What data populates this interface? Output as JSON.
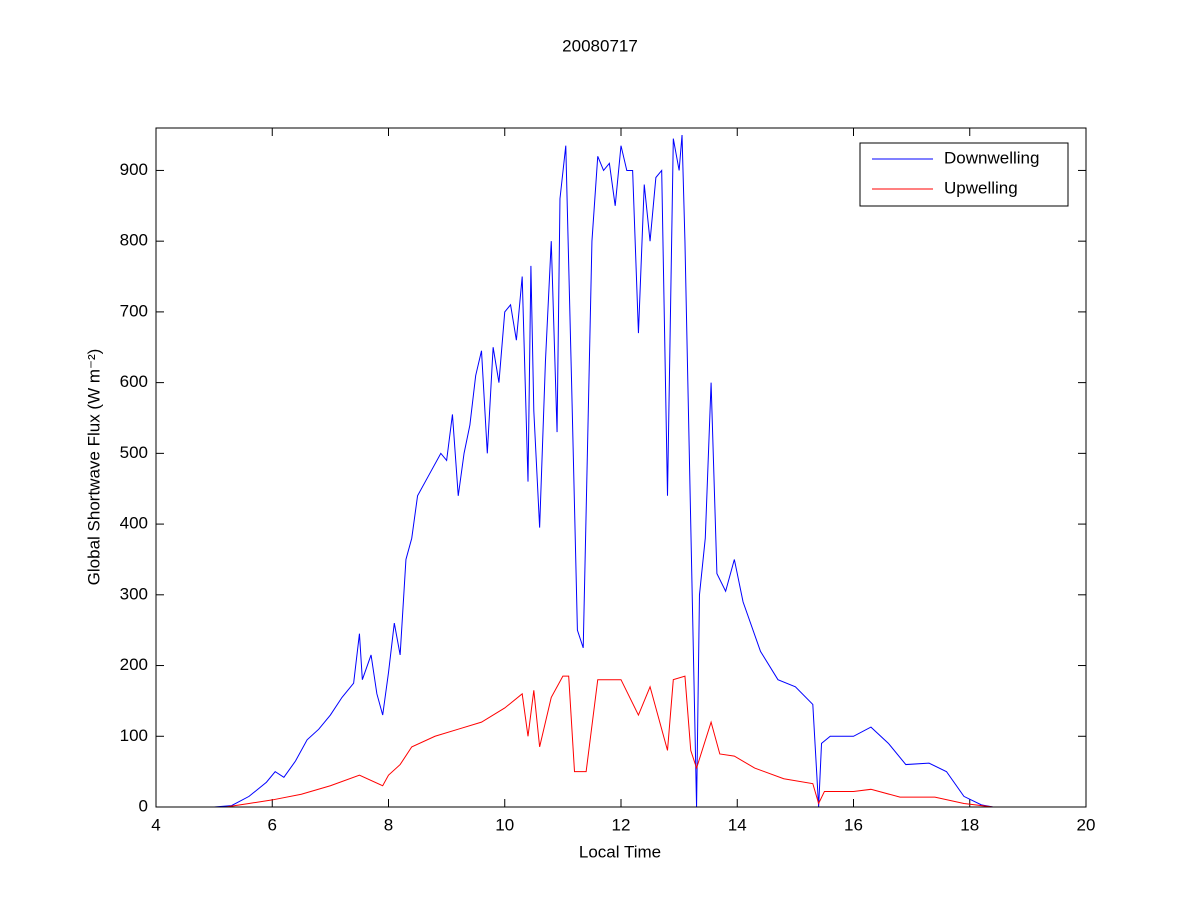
{
  "chart_data": {
    "type": "line",
    "title": "20080717",
    "xlabel": "Local Time",
    "ylabel": "Global Shortwave Flux (W m⁻²)",
    "xlim": [
      4,
      20
    ],
    "xticks": [
      4,
      6,
      8,
      10,
      12,
      14,
      16,
      18,
      20
    ],
    "ylim": [
      0,
      960
    ],
    "yticks": [
      0,
      100,
      200,
      300,
      400,
      500,
      600,
      700,
      800,
      900
    ],
    "grid": false,
    "legend": "upper right",
    "series": [
      {
        "name": "Downwelling",
        "color": "#0000ff",
        "x": [
          4.0,
          5.0,
          5.3,
          5.6,
          5.9,
          6.05,
          6.2,
          6.4,
          6.6,
          6.8,
          7.0,
          7.2,
          7.4,
          7.5,
          7.55,
          7.7,
          7.8,
          7.9,
          8.0,
          8.1,
          8.2,
          8.3,
          8.4,
          8.5,
          8.7,
          8.9,
          9.0,
          9.1,
          9.2,
          9.3,
          9.4,
          9.5,
          9.6,
          9.7,
          9.8,
          9.9,
          10.0,
          10.1,
          10.2,
          10.3,
          10.4,
          10.45,
          10.5,
          10.6,
          10.7,
          10.8,
          10.9,
          10.95,
          11.05,
          11.15,
          11.25,
          11.35,
          11.5,
          11.6,
          11.7,
          11.8,
          11.9,
          12.0,
          12.1,
          12.2,
          12.3,
          12.4,
          12.5,
          12.6,
          12.7,
          12.8,
          12.9,
          13.0,
          13.05,
          13.1,
          13.2,
          13.3,
          13.35,
          13.45,
          13.55,
          13.65,
          13.8,
          13.95,
          14.1,
          14.4,
          14.7,
          15.0,
          15.3,
          15.4,
          15.45,
          15.6,
          16.0,
          16.3,
          16.6,
          16.9,
          17.3,
          17.6,
          17.9,
          18.2,
          18.4
        ],
        "values": [
          0,
          0,
          2,
          15,
          35,
          50,
          42,
          65,
          95,
          110,
          130,
          155,
          175,
          245,
          180,
          215,
          160,
          130,
          190,
          260,
          215,
          350,
          380,
          440,
          470,
          500,
          490,
          555,
          440,
          500,
          540,
          610,
          645,
          500,
          650,
          600,
          700,
          710,
          660,
          750,
          460,
          765,
          560,
          395,
          630,
          800,
          530,
          860,
          935,
          600,
          250,
          225,
          800,
          920,
          900,
          910,
          850,
          935,
          900,
          900,
          670,
          880,
          800,
          890,
          900,
          440,
          945,
          900,
          950,
          800,
          400,
          0,
          300,
          380,
          600,
          330,
          305,
          350,
          290,
          220,
          180,
          170,
          145,
          0,
          90,
          100,
          100,
          113,
          90,
          60,
          62,
          50,
          15,
          3,
          0
        ]
      },
      {
        "name": "Upwelling",
        "color": "#ff0000",
        "x": [
          4.0,
          5.2,
          5.6,
          6.0,
          6.5,
          7.0,
          7.5,
          7.9,
          8.0,
          8.2,
          8.4,
          8.8,
          9.2,
          9.6,
          10.0,
          10.3,
          10.4,
          10.5,
          10.6,
          10.8,
          11.0,
          11.1,
          11.2,
          11.4,
          11.6,
          12.0,
          12.3,
          12.5,
          12.8,
          12.9,
          13.1,
          13.2,
          13.3,
          13.55,
          13.7,
          13.95,
          14.3,
          14.8,
          15.3,
          15.4,
          15.5,
          16.0,
          16.3,
          16.8,
          17.4,
          17.9,
          18.4
        ],
        "values": [
          0,
          0,
          5,
          10,
          18,
          30,
          45,
          30,
          45,
          60,
          85,
          100,
          110,
          120,
          140,
          160,
          100,
          165,
          85,
          155,
          185,
          185,
          50,
          50,
          180,
          180,
          130,
          170,
          80,
          180,
          185,
          80,
          55,
          120,
          75,
          72,
          55,
          40,
          33,
          5,
          22,
          22,
          25,
          14,
          14,
          5,
          0
        ]
      }
    ]
  }
}
